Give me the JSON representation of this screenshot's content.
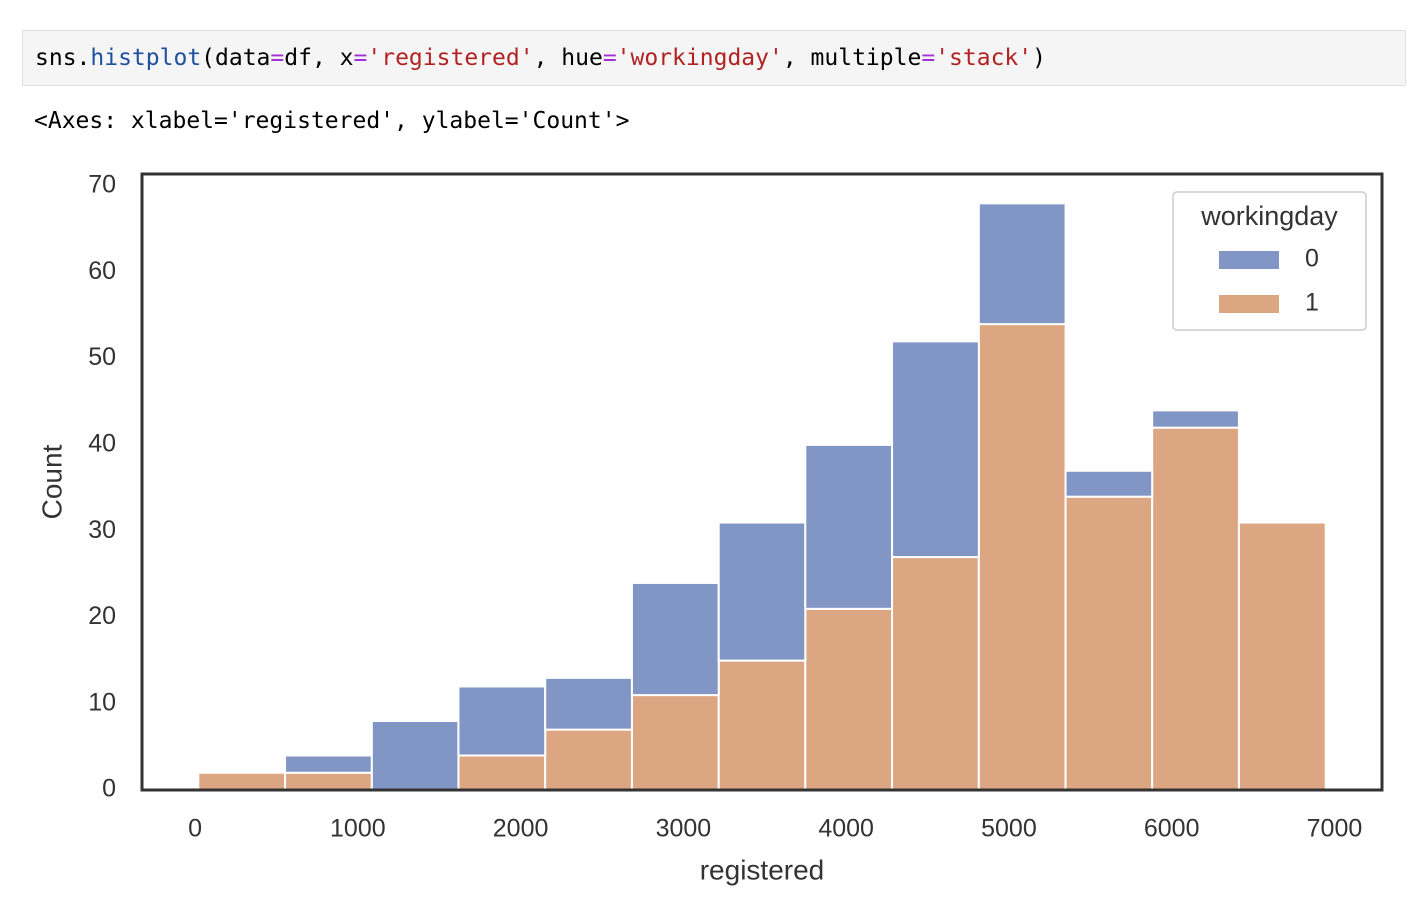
{
  "code_cell": {
    "tokens": [
      "sns.",
      "histplot",
      "(data",
      "=",
      "df, x",
      "=",
      "'registered'",
      ", hue",
      "=",
      "'workingday'",
      ", multiple",
      "=",
      "'stack'",
      ")"
    ]
  },
  "output": "<Axes: xlabel='registered', ylabel='Count'>",
  "chart_data": {
    "type": "histogram",
    "xlabel": "registered",
    "ylabel": "Count",
    "bins": [
      20,
      553,
      1086,
      1618,
      2151,
      2684,
      3217,
      3749,
      4282,
      4815,
      5348,
      5880,
      6413,
      6946
    ],
    "series": [
      {
        "name": "0",
        "color": "#8196c4",
        "values": [
          0,
          2,
          8,
          8,
          6,
          13,
          16,
          19,
          25,
          14,
          3,
          2,
          0
        ]
      },
      {
        "name": "1",
        "color": "#dba681",
        "values": [
          2,
          2,
          0,
          4,
          7,
          11,
          15,
          21,
          27,
          54,
          34,
          42,
          31
        ]
      }
    ],
    "stacked": true,
    "legend_title": "workingday",
    "legend": "upper right",
    "grid": false,
    "xlim": [
      -326,
      7292
    ],
    "ylim": [
      0,
      71.4
    ],
    "xticks": [
      0,
      1000,
      2000,
      3000,
      4000,
      5000,
      6000,
      7000
    ],
    "yticks": [
      0,
      10,
      20,
      30,
      40,
      50,
      60,
      70
    ]
  }
}
